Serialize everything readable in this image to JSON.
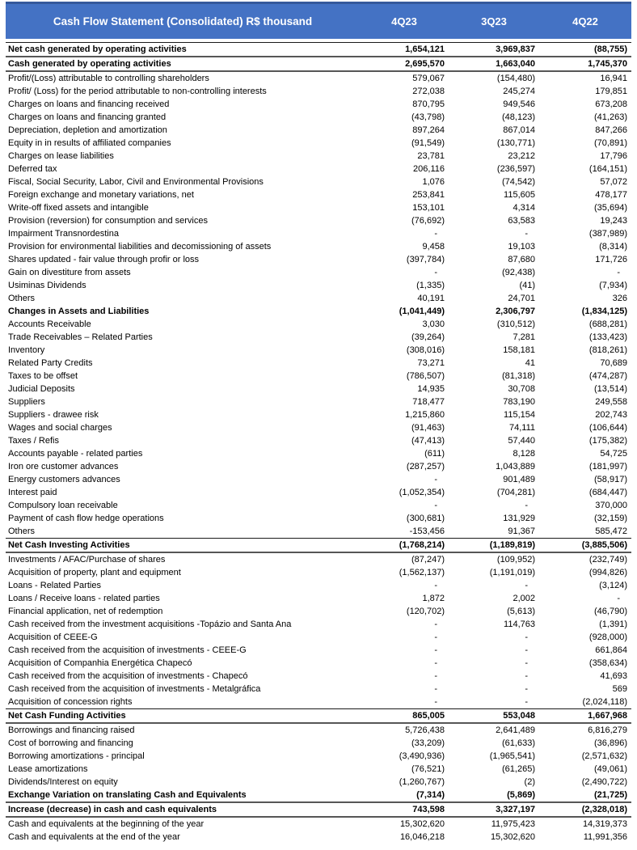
{
  "header": {
    "title": "Cash Flow Statement (Consolidated) R$ thousand",
    "columns": [
      "4Q23",
      "3Q23",
      "4Q22"
    ]
  },
  "colors": {
    "header_bg": "#4472C4",
    "header_border": "#35599C",
    "header_text": "#FFFFFF"
  },
  "rows": [
    {
      "label": "Net cash generated by operating activities",
      "v": [
        "1,654,121",
        "3,969,837",
        "(88,755)"
      ],
      "bold": true,
      "top": "thin",
      "bottom": "thick"
    },
    {
      "label": "Cash generated by operating activities",
      "v": [
        "2,695,570",
        "1,663,040",
        "1,745,370"
      ],
      "bold": true,
      "bottom": "thick"
    },
    {
      "label": "Profit/(Loss) attributable to controlling shareholders",
      "v": [
        "579,067",
        "(154,480)",
        "16,941"
      ]
    },
    {
      "label": "Profit/ (Loss) for the period attributable to non-controlling interests",
      "v": [
        "272,038",
        "245,274",
        "179,851"
      ]
    },
    {
      "label": "Charges on loans and financing received",
      "v": [
        "870,795",
        "949,546",
        "673,208"
      ]
    },
    {
      "label": "Charges on loans and financing granted",
      "v": [
        "(43,798)",
        "(48,123)",
        "(41,263)"
      ]
    },
    {
      "label": "Depreciation, depletion and amortization",
      "v": [
        "897,264",
        "867,014",
        "847,266"
      ]
    },
    {
      "label": "Equity in in results of affiliated companies",
      "v": [
        "(91,549)",
        "(130,771)",
        "(70,891)"
      ]
    },
    {
      "label": "Charges on lease liabilities",
      "v": [
        "23,781",
        "23,212",
        "17,796"
      ]
    },
    {
      "label": "Deferred tax",
      "v": [
        "206,116",
        "(236,597)",
        "(164,151)"
      ]
    },
    {
      "label": "Fiscal, Social Security, Labor, Civil and Environmental Provisions",
      "v": [
        "1,076",
        "(74,542)",
        "57,072"
      ]
    },
    {
      "label": "Foreign exchange and monetary variations, net",
      "v": [
        "253,841",
        "115,605",
        "478,177"
      ]
    },
    {
      "label": "Write-off fixed assets and intangible",
      "v": [
        "153,101",
        "4,314",
        "(35,694)"
      ]
    },
    {
      "label": "Provision (reversion) for consumption and services",
      "v": [
        "(76,692)",
        "63,583",
        "19,243"
      ]
    },
    {
      "label": "Impairment Transnordestina",
      "v": [
        "-",
        "-",
        "(387,989)"
      ]
    },
    {
      "label": "Provision for environmental liabilities and decomissioning of assets",
      "v": [
        "9,458",
        "19,103",
        "(8,314)"
      ]
    },
    {
      "label": "Shares updated - fair value through profir or loss",
      "v": [
        "(397,784)",
        "87,680",
        "171,726"
      ]
    },
    {
      "label": "Gain on divestiture from assets",
      "v": [
        "-",
        "(92,438)",
        "-"
      ]
    },
    {
      "label": "Usiminas Dividends",
      "v": [
        "(1,335)",
        "(41)",
        "(7,934)"
      ]
    },
    {
      "label": "Others",
      "v": [
        "40,191",
        "24,701",
        "326"
      ]
    },
    {
      "label": "Changes in Assets and Liabilities",
      "v": [
        "(1,041,449)",
        "2,306,797",
        "(1,834,125)"
      ],
      "bold": true
    },
    {
      "label": "Accounts Receivable",
      "v": [
        "3,030",
        "(310,512)",
        "(688,281)"
      ]
    },
    {
      "label": "Trade Receivables – Related Parties",
      "v": [
        "(39,264)",
        "7,281",
        "(133,423)"
      ]
    },
    {
      "label": "Inventory",
      "v": [
        "(308,016)",
        "158,181",
        "(818,261)"
      ]
    },
    {
      "label": "Related Party Credits",
      "v": [
        "73,271",
        "41",
        "70,689"
      ]
    },
    {
      "label": "Taxes to be offset",
      "v": [
        "(786,507)",
        "(81,318)",
        "(474,287)"
      ]
    },
    {
      "label": "Judicial Deposits",
      "v": [
        "14,935",
        "30,708",
        "(13,514)"
      ]
    },
    {
      "label": "Suppliers",
      "v": [
        "718,477",
        "783,190",
        "249,558"
      ]
    },
    {
      "label": "Suppliers - drawee risk",
      "v": [
        "1,215,860",
        "115,154",
        "202,743"
      ]
    },
    {
      "label": "Wages and social charges",
      "v": [
        "(91,463)",
        "74,111",
        "(106,644)"
      ]
    },
    {
      "label": "Taxes / Refis",
      "v": [
        "(47,413)",
        "57,440",
        "(175,382)"
      ]
    },
    {
      "label": "Accounts payable - related parties",
      "v": [
        "(611)",
        "8,128",
        "54,725"
      ]
    },
    {
      "label": "Iron ore customer advances",
      "v": [
        "(287,257)",
        "1,043,889",
        "(181,997)"
      ]
    },
    {
      "label": "Energy customers advances",
      "v": [
        "-",
        "901,489",
        "(58,917)"
      ]
    },
    {
      "label": "Interest paid",
      "v": [
        "(1,052,354)",
        "(704,281)",
        "(684,447)"
      ]
    },
    {
      "label": "Compulsory loan receivable",
      "v": [
        "-",
        "-",
        "370,000"
      ]
    },
    {
      "label": "Payment of cash flow hedge operations",
      "v": [
        "(300,681)",
        "131,929",
        "(32,159)"
      ]
    },
    {
      "label": "Others",
      "v": [
        "-153,456",
        "91,367",
        "585,472"
      ]
    },
    {
      "label": "Net Cash Investing Activities",
      "v": [
        "(1,768,214)",
        "(1,189,819)",
        "(3,885,506)"
      ],
      "bold": true,
      "top": "thin",
      "bottom": "thick"
    },
    {
      "label": "Investments / AFAC/Purchase of shares",
      "v": [
        "(87,247)",
        "(109,952)",
        "(232,749)"
      ]
    },
    {
      "label": "Acquisition of property, plant and equipment",
      "v": [
        "(1,562,137)",
        "(1,191,019)",
        "(994,826)"
      ]
    },
    {
      "label": "Loans - Related Parties",
      "v": [
        "-",
        "-",
        "(3,124)"
      ]
    },
    {
      "label": "Loans / Receive loans - related parties",
      "v": [
        "1,872",
        "2,002",
        "-"
      ]
    },
    {
      "label": "Financial application, net of redemption",
      "v": [
        "(120,702)",
        "(5,613)",
        "(46,790)"
      ]
    },
    {
      "label": "Cash received from the investment acquisitions -Topázio and Santa Ana",
      "v": [
        "-",
        "114,763",
        "(1,391)"
      ]
    },
    {
      "label": "Acquisition of CEEE-G",
      "v": [
        "-",
        "-",
        "(928,000)"
      ]
    },
    {
      "label": "Cash received from the acquisition of investments - CEEE-G",
      "v": [
        "-",
        "-",
        "661,864"
      ]
    },
    {
      "label": "Acquisition of Companhia Energética Chapecó",
      "v": [
        "-",
        "-",
        "(358,634)"
      ]
    },
    {
      "label": "Cash received from the acquisition of investments - Chapecó",
      "v": [
        "-",
        "-",
        "41,693"
      ]
    },
    {
      "label": "Cash received from the acquisition of investments - Metalgráfica",
      "v": [
        "-",
        "-",
        "569"
      ]
    },
    {
      "label": "Acquisition of concession rights",
      "v": [
        "-",
        "-",
        "(2,024,118)"
      ]
    },
    {
      "label": "Net Cash Funding Activities",
      "v": [
        "865,005",
        "553,048",
        "1,667,968"
      ],
      "bold": true,
      "top": "thin",
      "bottom": "thick"
    },
    {
      "label": "Borrowings and financing raised",
      "v": [
        "5,726,438",
        "2,641,489",
        "6,816,279"
      ]
    },
    {
      "label": "Cost of borrowing and financing",
      "v": [
        "(33,209)",
        "(61,633)",
        "(36,896)"
      ]
    },
    {
      "label": "Borrowing amortizations - principal",
      "v": [
        "(3,490,936)",
        "(1,965,541)",
        "(2,571,632)"
      ]
    },
    {
      "label": "Lease amortizations",
      "v": [
        "(76,521)",
        "(61,265)",
        "(49,061)"
      ]
    },
    {
      "label": "Dividends/Interest on equity",
      "v": [
        "(1,260,767)",
        "(2)",
        "(2,490,722)"
      ]
    },
    {
      "label": "Exchange Variation on translating Cash and Equivalents",
      "v": [
        "(7,314)",
        "(5,869)",
        "(21,725)"
      ],
      "bold": true,
      "bottom": "thick"
    },
    {
      "label": "Increase (decrease) in cash and cash equivalents",
      "v": [
        "743,598",
        "3,327,197",
        "(2,328,018)"
      ],
      "bold": true,
      "bottom": "thick"
    },
    {
      "label": "Cash and equivalents at the beginning of the year",
      "v": [
        "15,302,620",
        "11,975,423",
        "14,319,373"
      ]
    },
    {
      "label": "Cash and equivalents at the end of the year",
      "v": [
        "16,046,218",
        "15,302,620",
        "11,991,356"
      ]
    }
  ]
}
